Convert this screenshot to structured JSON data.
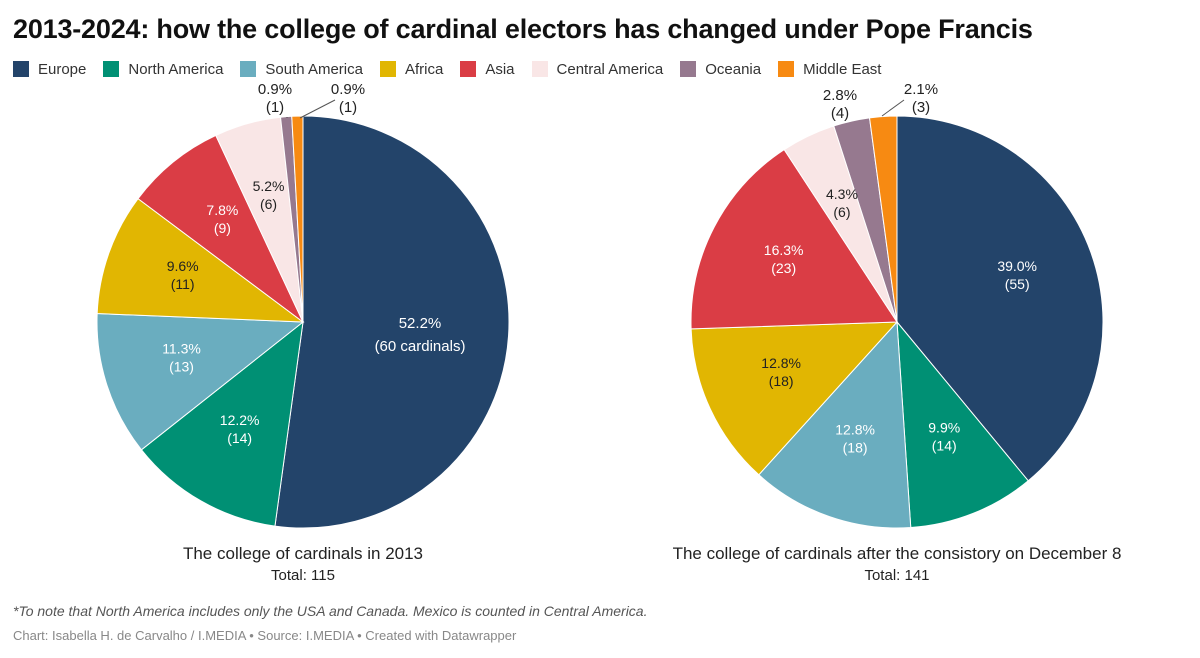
{
  "title": "2013-2024: how the college of cardinal electors has changed under Pope Francis",
  "legend": [
    {
      "label": "Europe",
      "color": "#23446a"
    },
    {
      "label": "North America",
      "color": "#009074"
    },
    {
      "label": "South America",
      "color": "#6aadbf"
    },
    {
      "label": "Africa",
      "color": "#e1b602"
    },
    {
      "label": "Asia",
      "color": "#da3d45"
    },
    {
      "label": "Central America",
      "color": "#f9e6e6"
    },
    {
      "label": "Oceania",
      "color": "#96798f"
    },
    {
      "label": "Middle East",
      "color": "#f78a12"
    }
  ],
  "chart_data": [
    {
      "type": "pie",
      "title": "The college of cardinals in 2013",
      "subtitle": "Total: 115",
      "slices": [
        {
          "category": "Europe",
          "value": 60,
          "percent_label": "52.2%",
          "count_label": "(60 cardinals)"
        },
        {
          "category": "North America",
          "value": 14,
          "percent_label": "12.2%",
          "count_label": "(14)"
        },
        {
          "category": "South America",
          "value": 13,
          "percent_label": "11.3%",
          "count_label": "(13)"
        },
        {
          "category": "Africa",
          "value": 11,
          "percent_label": "9.6%",
          "count_label": "(11)"
        },
        {
          "category": "Asia",
          "value": 9,
          "percent_label": "7.8%",
          "count_label": "(9)"
        },
        {
          "category": "Central America",
          "value": 6,
          "percent_label": "5.2%",
          "count_label": "(6)"
        },
        {
          "category": "Oceania",
          "value": 1,
          "percent_label": "0.9%",
          "count_label": "(1)"
        },
        {
          "category": "Middle East",
          "value": 1,
          "percent_label": "0.9%",
          "count_label": "(1)"
        }
      ]
    },
    {
      "type": "pie",
      "title": "The college of cardinals after the consistory on December 8",
      "subtitle": "Total: 141",
      "slices": [
        {
          "category": "Europe",
          "value": 55,
          "percent_label": "39.0%",
          "count_label": "(55)"
        },
        {
          "category": "North America",
          "value": 14,
          "percent_label": "9.9%",
          "count_label": "(14)"
        },
        {
          "category": "South America",
          "value": 18,
          "percent_label": "12.8%",
          "count_label": "(18)"
        },
        {
          "category": "Africa",
          "value": 18,
          "percent_label": "12.8%",
          "count_label": "(18)"
        },
        {
          "category": "Asia",
          "value": 23,
          "percent_label": "16.3%",
          "count_label": "(23)"
        },
        {
          "category": "Central America",
          "value": 6,
          "percent_label": "4.3%",
          "count_label": "(6)"
        },
        {
          "category": "Oceania",
          "value": 4,
          "percent_label": "2.8%",
          "count_label": "(4)"
        },
        {
          "category": "Middle East",
          "value": 3,
          "percent_label": "2.1%",
          "count_label": "(3)"
        }
      ]
    }
  ],
  "footnote": "*To note that North America includes only the USA and Canada. Mexico is counted in Central America.",
  "credit": "Chart: Isabella H. de Carvalho / I.MEDIA • Source: I.MEDIA • Created with Datawrapper"
}
